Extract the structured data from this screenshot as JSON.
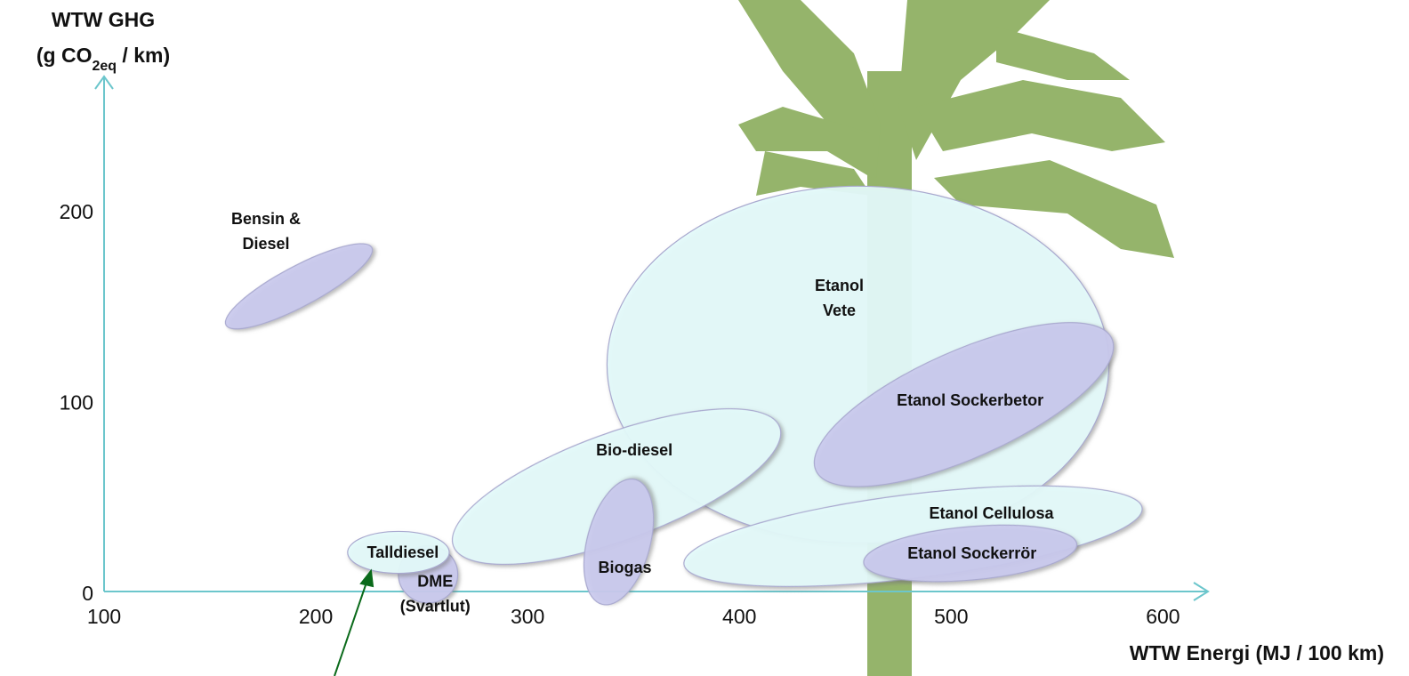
{
  "chart_data": {
    "type": "ellipse",
    "ylabel": {
      "line1": "WTW GHG",
      "pre": "(g CO",
      "sub": "2eq",
      "post": " / km)"
    },
    "xlabel": "WTW Energi (MJ / 100 km)",
    "xlim": [
      100,
      620
    ],
    "ylim": [
      0,
      270
    ],
    "xticks": [
      100,
      200,
      300,
      400,
      500,
      600
    ],
    "yticks": [
      0,
      100,
      200
    ],
    "series": [
      {
        "name": [
          "Etanol",
          "Vete"
        ],
        "color": "#e4fbfb",
        "x": 456,
        "y": 119,
        "width": 237,
        "height": 187,
        "angle": 0
      },
      {
        "name": [
          "Bio-diesel"
        ],
        "color": "#e4fbfb",
        "x": 342,
        "y": 55,
        "width": 164,
        "height": 56,
        "angle": -20
      },
      {
        "name": [
          "Biogas"
        ],
        "color": "#cacaee",
        "x": 343,
        "y": 26,
        "width": 61,
        "height": 33,
        "angle": -75
      },
      {
        "name": [
          "Etanol Cellulosa"
        ],
        "color": "#e4fbfb",
        "x": 482,
        "y": 29,
        "width": 218,
        "height": 44,
        "angle": -7
      },
      {
        "name": [
          "Etanol Sockerrör"
        ],
        "color": "#cacaee",
        "x": 509,
        "y": 20,
        "width": 101,
        "height": 28,
        "angle": -5
      },
      {
        "name": [
          "Etanol Sockerbetor"
        ],
        "color": "#cacaee",
        "x": 506,
        "y": 98,
        "width": 153,
        "height": 56,
        "angle": -24
      },
      {
        "name": [
          "Bensin &",
          "Diesel"
        ],
        "color": "#cacaee",
        "x": 192,
        "y": 160,
        "width": 78,
        "height": 21,
        "angle": -28
      },
      {
        "name": [
          "DME",
          "(Svartlut)"
        ],
        "color": "#cacaee",
        "x": 253,
        "y": 9,
        "width": 28,
        "height": 30,
        "angle": 0
      },
      {
        "name": [
          "Talldiesel"
        ],
        "color": "#e4fbfb",
        "x": 239,
        "y": 20.5,
        "width": 48,
        "height": 22,
        "angle": 0
      }
    ]
  }
}
